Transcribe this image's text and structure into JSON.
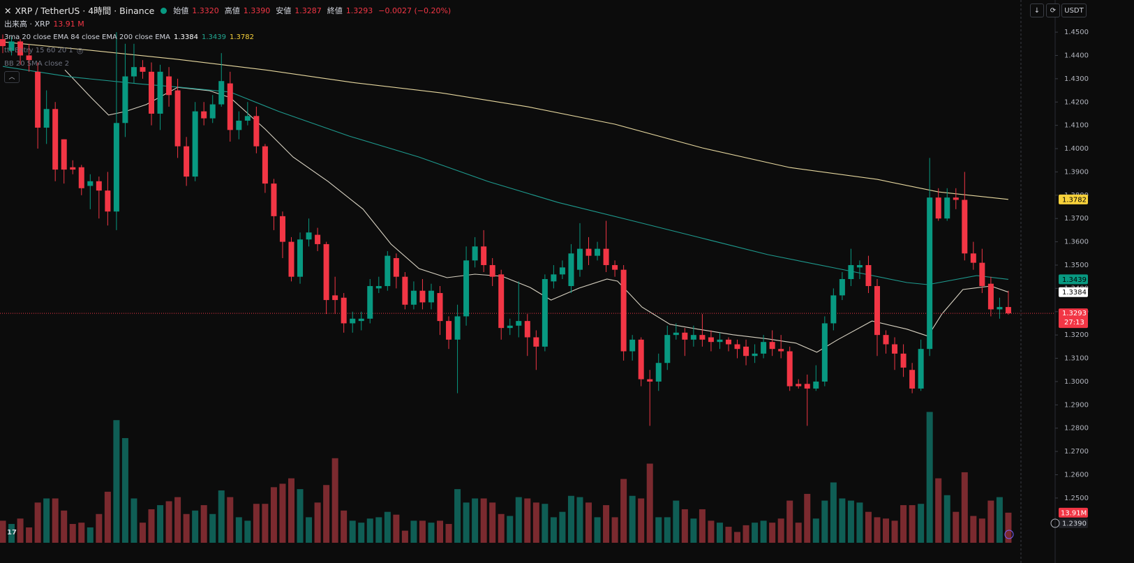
{
  "header": {
    "symbol": "XRP / TetherUS · 4時間 · Binance",
    "ohlc": [
      {
        "label": "始値",
        "value": "1.3320"
      },
      {
        "label": "高値",
        "value": "1.3390"
      },
      {
        "label": "安値",
        "value": "1.3287"
      },
      {
        "label": "終値",
        "value": "1.3293"
      }
    ],
    "change": "−0.0027 (−0.20%)",
    "volume_title": "出来高 · XRP",
    "volume_value": "13.91 M",
    "indicators": [
      "3ma 20 close EMA 84 close EMA 200 close EMA",
      "ttt Entry 15 60 20 1",
      "BB 20 SMA close 2"
    ],
    "currency": "USDT",
    "countdown": "27:13",
    "crosshair_price": "1.2390"
  },
  "chart_data": {
    "type": "candlestick",
    "up_color": "#089981",
    "down_color": "#f23645",
    "volume_up_color": "#0f5e55",
    "volume_down_color": "#7b2a2f",
    "ylim": [
      1.2308,
      1.4638
    ],
    "yticks": [
      {
        "value": 1.45,
        "label": "1.4500"
      },
      {
        "value": 1.44,
        "label": "1.4400"
      },
      {
        "value": 1.43,
        "label": "1.4300"
      },
      {
        "value": 1.42,
        "label": "1.4200"
      },
      {
        "value": 1.41,
        "label": "1.4100"
      },
      {
        "value": 1.4,
        "label": "1.4000"
      },
      {
        "value": 1.39,
        "label": "1.3900"
      },
      {
        "value": 1.38,
        "label": "1.3800"
      },
      {
        "value": 1.37,
        "label": "1.3700"
      },
      {
        "value": 1.36,
        "label": "1.3600"
      },
      {
        "value": 1.35,
        "label": "1.3500"
      },
      {
        "value": 1.34,
        "label": "1.3400"
      },
      {
        "value": 1.33,
        "label": "1.3300"
      },
      {
        "value": 1.32,
        "label": "1.3200"
      },
      {
        "value": 1.31,
        "label": "1.3100"
      },
      {
        "value": 1.3,
        "label": "1.3000"
      },
      {
        "value": 1.29,
        "label": "1.2900"
      },
      {
        "value": 1.28,
        "label": "1.2800"
      },
      {
        "value": 1.27,
        "label": "1.2700"
      },
      {
        "value": 1.26,
        "label": "1.2600"
      },
      {
        "value": 1.25,
        "label": "1.2500"
      }
    ],
    "volume_ylim": [
      0,
      100
    ],
    "volume_label": "13.91M",
    "open": [
      1.447,
      1.442,
      1.446,
      1.44,
      1.433,
      1.409,
      1.417,
      1.404,
      1.392,
      1.392,
      1.384,
      1.386,
      1.382,
      1.373,
      1.411,
      1.431,
      1.435,
      1.433,
      1.415,
      1.431,
      1.425,
      1.401,
      1.388,
      1.416,
      1.413,
      1.419,
      1.428,
      1.408,
      1.412,
      1.414,
      1.401,
      1.385,
      1.371,
      1.36,
      1.345,
      1.361,
      1.363,
      1.359,
      1.337,
      1.336,
      1.325,
      1.326,
      1.327,
      1.34,
      1.341,
      1.353,
      1.345,
      1.333,
      1.339,
      1.334,
      1.338,
      1.326,
      1.318,
      1.328,
      1.352,
      1.358,
      1.35,
      1.346,
      1.323,
      1.324,
      1.326,
      1.319,
      1.315,
      1.343,
      1.346,
      1.341,
      1.348,
      1.357,
      1.354,
      1.357,
      1.35,
      1.348,
      1.313,
      1.318,
      1.301,
      1.3,
      1.308,
      1.32,
      1.321,
      1.318,
      1.32,
      1.319,
      1.317,
      1.318,
      1.316,
      1.315,
      1.311,
      1.312,
      1.317,
      1.314,
      1.313,
      1.299,
      1.299,
      1.297,
      1.3,
      1.325,
      1.337,
      1.344,
      1.349,
      1.35,
      1.341,
      1.32,
      1.316,
      1.312,
      1.305,
      1.297,
      1.314,
      1.379,
      1.37,
      1.379,
      1.378,
      1.355,
      1.351,
      1.342,
      1.331,
      1.332
    ],
    "high": [
      1.449,
      1.448,
      1.447,
      1.445,
      1.437,
      1.425,
      1.42,
      1.404,
      1.395,
      1.393,
      1.389,
      1.388,
      1.39,
      1.45,
      1.445,
      1.445,
      1.438,
      1.437,
      1.436,
      1.435,
      1.43,
      1.405,
      1.42,
      1.42,
      1.423,
      1.441,
      1.433,
      1.416,
      1.42,
      1.418,
      1.402,
      1.387,
      1.373,
      1.362,
      1.364,
      1.37,
      1.366,
      1.36,
      1.345,
      1.338,
      1.33,
      1.33,
      1.344,
      1.345,
      1.356,
      1.355,
      1.347,
      1.343,
      1.344,
      1.342,
      1.341,
      1.328,
      1.333,
      1.358,
      1.362,
      1.365,
      1.353,
      1.348,
      1.327,
      1.343,
      1.329,
      1.322,
      1.346,
      1.35,
      1.352,
      1.359,
      1.368,
      1.362,
      1.36,
      1.369,
      1.352,
      1.35,
      1.32,
      1.319,
      1.305,
      1.312,
      1.324,
      1.325,
      1.323,
      1.324,
      1.329,
      1.322,
      1.321,
      1.319,
      1.318,
      1.318,
      1.316,
      1.32,
      1.322,
      1.32,
      1.315,
      1.301,
      1.303,
      1.307,
      1.328,
      1.34,
      1.347,
      1.357,
      1.352,
      1.354,
      1.344,
      1.322,
      1.319,
      1.316,
      1.308,
      1.318,
      1.396,
      1.383,
      1.383,
      1.383,
      1.39,
      1.36,
      1.357,
      1.345,
      1.336,
      1.339
    ],
    "low": [
      1.441,
      1.44,
      1.436,
      1.433,
      1.4,
      1.402,
      1.386,
      1.385,
      1.389,
      1.38,
      1.374,
      1.37,
      1.367,
      1.365,
      1.405,
      1.428,
      1.43,
      1.41,
      1.408,
      1.418,
      1.396,
      1.384,
      1.386,
      1.41,
      1.411,
      1.418,
      1.403,
      1.404,
      1.41,
      1.398,
      1.381,
      1.365,
      1.353,
      1.343,
      1.342,
      1.358,
      1.356,
      1.329,
      1.329,
      1.321,
      1.321,
      1.322,
      1.325,
      1.338,
      1.339,
      1.34,
      1.331,
      1.331,
      1.331,
      1.331,
      1.32,
      1.314,
      1.295,
      1.324,
      1.349,
      1.347,
      1.341,
      1.318,
      1.32,
      1.319,
      1.311,
      1.305,
      1.313,
      1.34,
      1.344,
      1.338,
      1.345,
      1.35,
      1.352,
      1.347,
      1.345,
      1.309,
      1.309,
      1.298,
      1.281,
      1.296,
      1.305,
      1.318,
      1.311,
      1.315,
      1.315,
      1.313,
      1.314,
      1.313,
      1.31,
      1.307,
      1.308,
      1.31,
      1.311,
      1.31,
      1.296,
      1.297,
      1.281,
      1.296,
      1.298,
      1.322,
      1.335,
      1.341,
      1.344,
      1.338,
      1.311,
      1.312,
      1.305,
      1.302,
      1.295,
      1.296,
      1.311,
      1.369,
      1.369,
      1.374,
      1.352,
      1.348,
      1.338,
      1.328,
      1.327,
      1.3287
    ],
    "close": [
      1.444,
      1.446,
      1.44,
      1.438,
      1.409,
      1.417,
      1.391,
      1.391,
      1.391,
      1.383,
      1.386,
      1.382,
      1.373,
      1.411,
      1.431,
      1.435,
      1.433,
      1.415,
      1.433,
      1.423,
      1.401,
      1.388,
      1.416,
      1.413,
      1.419,
      1.429,
      1.408,
      1.412,
      1.414,
      1.401,
      1.385,
      1.371,
      1.36,
      1.345,
      1.361,
      1.364,
      1.359,
      1.335,
      1.335,
      1.325,
      1.327,
      1.327,
      1.341,
      1.341,
      1.354,
      1.345,
      1.333,
      1.339,
      1.334,
      1.339,
      1.326,
      1.318,
      1.328,
      1.352,
      1.358,
      1.35,
      1.345,
      1.323,
      1.324,
      1.326,
      1.319,
      1.315,
      1.344,
      1.346,
      1.349,
      1.355,
      1.357,
      1.354,
      1.357,
      1.35,
      1.348,
      1.313,
      1.318,
      1.301,
      1.3,
      1.308,
      1.32,
      1.321,
      1.318,
      1.32,
      1.318,
      1.317,
      1.318,
      1.316,
      1.314,
      1.311,
      1.312,
      1.317,
      1.314,
      1.313,
      1.298,
      1.298,
      1.297,
      1.3,
      1.325,
      1.337,
      1.344,
      1.35,
      1.35,
      1.341,
      1.32,
      1.316,
      1.312,
      1.306,
      1.297,
      1.314,
      1.379,
      1.37,
      1.379,
      1.378,
      1.355,
      1.351,
      1.341,
      1.331,
      1.332,
      1.3293
    ],
    "volume": [
      10.2,
      8.7,
      11.2,
      7.1,
      18.6,
      20.5,
      20.5,
      14.9,
      8.7,
      9.3,
      7.1,
      13.3,
      23.6,
      56.7,
      48.4,
      20.5,
      9.3,
      15.5,
      17.4,
      19.2,
      21.1,
      13.3,
      14.9,
      17.4,
      13.3,
      24.2,
      21.1,
      11.8,
      10.2,
      18.0,
      18.0,
      25.7,
      27.3,
      29.8,
      24.8,
      11.8,
      18.6,
      26.7,
      39.1,
      14.9,
      10.2,
      9.3,
      11.2,
      11.8,
      14.3,
      13.0,
      5.6,
      10.2,
      10.2,
      9.3,
      10.2,
      8.7,
      24.8,
      18.6,
      20.5,
      20.5,
      18.6,
      13.3,
      12.4,
      21.1,
      20.5,
      18.6,
      18.0,
      11.8,
      14.3,
      21.7,
      21.1,
      18.6,
      11.8,
      17.4,
      11.8,
      29.5,
      21.7,
      20.5,
      36.6,
      11.8,
      11.8,
      19.5,
      15.5,
      11.2,
      15.5,
      10.2,
      9.3,
      7.4,
      5.0,
      8.1,
      9.3,
      10.2,
      9.3,
      11.2,
      19.5,
      9.3,
      22.6,
      11.2,
      19.5,
      27.9,
      20.5,
      19.5,
      18.6,
      14.3,
      11.8,
      11.2,
      10.2,
      17.4,
      17.4,
      18.0,
      60.5,
      29.8,
      22.0,
      14.3,
      32.6,
      12.4,
      11.2,
      19.5,
      21.1,
      13.91
    ],
    "lines": [
      {
        "color": "#d9d3c3",
        "x": [
          7.1,
          10.1,
          12.1,
          14.0,
          16.4,
          20.0,
          23.6,
          26.0,
          30.0,
          33.2,
          37.2,
          41.2,
          44.4,
          47.6,
          50.8,
          54.0,
          57.1,
          60.3,
          62.7,
          65.9,
          69.1,
          70.3,
          73.1,
          76.3,
          79.5,
          83.5,
          87.5,
          90.7,
          93.1,
          95.5,
          99.4,
          103.4,
          105.8,
          107.4,
          109.8,
          113.0,
          115
        ],
        "values": [
          1.4338,
          1.4219,
          1.4144,
          1.4159,
          1.4189,
          1.4263,
          1.4249,
          1.4219,
          1.4084,
          1.3964,
          1.3859,
          1.374,
          1.359,
          1.3485,
          1.3446,
          1.3461,
          1.3452,
          1.3404,
          1.335,
          1.3401,
          1.344,
          1.3431,
          1.332,
          1.3246,
          1.3225,
          1.3201,
          1.3183,
          1.3165,
          1.3126,
          1.318,
          1.326,
          1.3225,
          1.3195,
          1.329,
          1.3395,
          1.341,
          1.3384
        ]
      },
      {
        "color": "#1e9a8e",
        "x": [
          0,
          7.7,
          15.6,
          20.4,
          26.0,
          31.6,
          39.6,
          47.6,
          55.5,
          63.5,
          71.5,
          79.5,
          87.5,
          95.5,
          103.4,
          105.8,
          111.4,
          115
        ],
        "values": [
          1.4353,
          1.4308,
          1.4278,
          1.4263,
          1.4243,
          1.4159,
          1.4054,
          1.3964,
          1.3859,
          1.3769,
          1.3695,
          1.362,
          1.3545,
          1.3485,
          1.3425,
          1.3416,
          1.3455,
          1.3439
        ]
      },
      {
        "color": "#e8d9a0",
        "x": [
          0,
          10,
          20,
          30,
          40,
          50,
          60,
          70,
          80,
          90,
          100,
          107,
          115
        ],
        "values": [
          1.4458,
          1.4422,
          1.4383,
          1.4338,
          1.4284,
          1.424,
          1.418,
          1.4105,
          1.4003,
          1.3919,
          1.3868,
          1.3814,
          1.3782
        ]
      }
    ],
    "line_tag_text_colors": [
      "#000000",
      "#000000",
      "#000000"
    ],
    "line_tag_colors": [
      "#ffffff",
      "#089981",
      "#f7d13b"
    ]
  }
}
